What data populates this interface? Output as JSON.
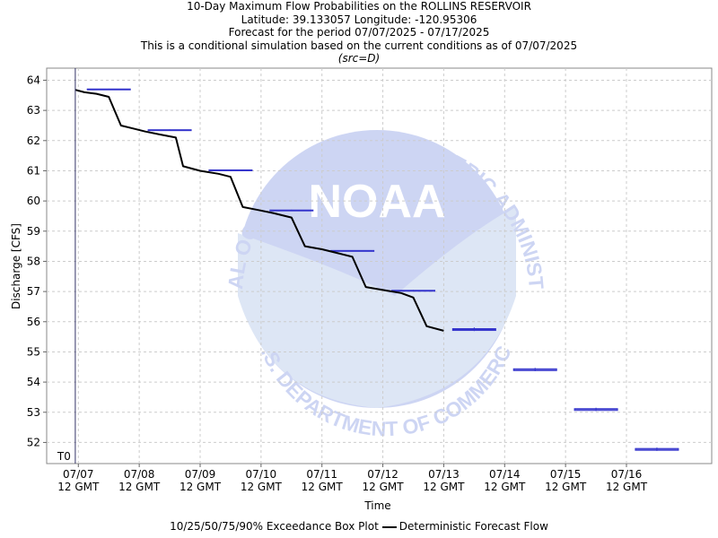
{
  "titles": {
    "line1": "10-Day Maximum Flow Probabilities on the ROLLINS RESERVOIR",
    "line2": "Latitude: 39.133057 Longitude: -120.95306",
    "line3": "Forecast for the period 07/07/2025 - 07/17/2025",
    "line4": "This is a conditional simulation based on the current conditions as of 07/07/2025",
    "line5": "(src=D)"
  },
  "watermark": {
    "logo_text": "NOAA",
    "ring_text_top": "NATIONAL OCEANIC AND ATMOSPHERIC ADMINISTRATION",
    "ring_text_bottom": "U.S. DEPARTMENT OF COMMERCE"
  },
  "legend": {
    "boxplot_label": "10/25/50/75/90% Exceedance Box Plot",
    "line_label": "Deterministic Forecast Flow"
  },
  "chart_data": {
    "type": "line",
    "xlabel": "Time",
    "ylabel": "Discharge [CFS]",
    "ylim": [
      51.3,
      64.4
    ],
    "xlim": [
      -0.52,
      10.4
    ],
    "y_ticks": [
      52,
      53,
      54,
      55,
      56,
      57,
      58,
      59,
      60,
      61,
      62,
      63,
      64
    ],
    "x_ticks": [
      {
        "x": 0,
        "date": "07/07",
        "time": "12 GMT"
      },
      {
        "x": 1,
        "date": "07/08",
        "time": "12 GMT"
      },
      {
        "x": 2,
        "date": "07/09",
        "time": "12 GMT"
      },
      {
        "x": 3,
        "date": "07/10",
        "time": "12 GMT"
      },
      {
        "x": 4,
        "date": "07/11",
        "time": "12 GMT"
      },
      {
        "x": 5,
        "date": "07/12",
        "time": "12 GMT"
      },
      {
        "x": 6,
        "date": "07/13",
        "time": "12 GMT"
      },
      {
        "x": 7,
        "date": "07/14",
        "time": "12 GMT"
      },
      {
        "x": 8,
        "date": "07/15",
        "time": "12 GMT"
      },
      {
        "x": 9,
        "date": "07/16",
        "time": "12 GMT"
      }
    ],
    "t0": {
      "x": -0.05,
      "label": "T0"
    },
    "grid": true,
    "legend_position": "bottom",
    "colors": {
      "forecast": "#000000",
      "boxplot": "#3333cc",
      "t0_line": "#333366",
      "grid": "#cccccc"
    },
    "forecast_series": {
      "name": "Deterministic Forecast Flow",
      "points": [
        [
          -0.05,
          63.68
        ],
        [
          0.1,
          63.6
        ],
        [
          0.3,
          63.55
        ],
        [
          0.5,
          63.45
        ],
        [
          0.7,
          62.5
        ],
        [
          0.9,
          62.4
        ],
        [
          1.1,
          62.3
        ],
        [
          1.35,
          62.2
        ],
        [
          1.6,
          62.1
        ],
        [
          1.72,
          61.15
        ],
        [
          2.0,
          61.0
        ],
        [
          2.3,
          60.9
        ],
        [
          2.5,
          60.8
        ],
        [
          2.7,
          59.8
        ],
        [
          2.95,
          59.7
        ],
        [
          3.2,
          59.6
        ],
        [
          3.5,
          59.45
        ],
        [
          3.72,
          58.5
        ],
        [
          4.0,
          58.4
        ],
        [
          4.3,
          58.25
        ],
        [
          4.5,
          58.15
        ],
        [
          4.72,
          57.15
        ],
        [
          5.0,
          57.05
        ],
        [
          5.3,
          56.95
        ],
        [
          5.5,
          56.8
        ],
        [
          5.72,
          55.85
        ],
        [
          6.0,
          55.7
        ]
      ]
    },
    "boxplots": [
      {
        "x": 0.5,
        "min": 63.68,
        "q1": 63.7,
        "median": 63.7,
        "q3": 63.71,
        "max": 63.72
      },
      {
        "x": 1.5,
        "min": 62.33,
        "q1": 62.35,
        "median": 62.35,
        "q3": 62.36,
        "max": 62.37
      },
      {
        "x": 2.5,
        "min": 61.0,
        "q1": 61.02,
        "median": 61.02,
        "q3": 61.03,
        "max": 61.04
      },
      {
        "x": 3.5,
        "min": 59.67,
        "q1": 59.69,
        "median": 59.69,
        "q3": 59.7,
        "max": 59.71
      },
      {
        "x": 4.5,
        "min": 58.33,
        "q1": 58.35,
        "median": 58.35,
        "q3": 58.36,
        "max": 58.37
      },
      {
        "x": 5.5,
        "min": 57.01,
        "q1": 57.03,
        "median": 57.03,
        "q3": 57.04,
        "max": 57.05
      },
      {
        "x": 6.5,
        "min": 55.69,
        "q1": 55.71,
        "median": 55.74,
        "q3": 55.77,
        "max": 55.81
      },
      {
        "x": 7.5,
        "min": 54.36,
        "q1": 54.38,
        "median": 54.41,
        "q3": 54.44,
        "max": 54.47
      },
      {
        "x": 8.5,
        "min": 53.04,
        "q1": 53.06,
        "median": 53.09,
        "q3": 53.12,
        "max": 53.15
      },
      {
        "x": 9.5,
        "min": 51.72,
        "q1": 51.74,
        "median": 51.77,
        "q3": 51.8,
        "max": 51.83
      }
    ]
  }
}
